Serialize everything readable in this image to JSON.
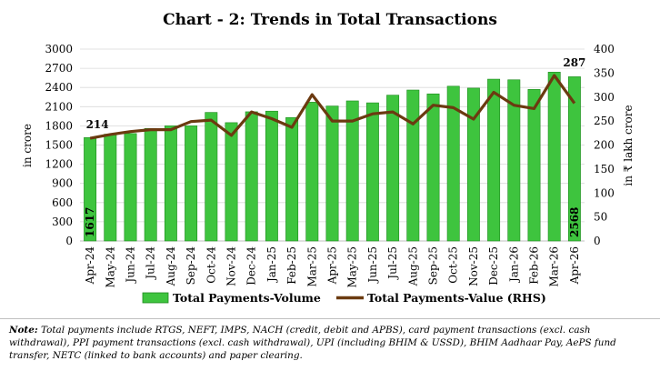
{
  "chart_data": {
    "type": "bar+line",
    "title": "Chart - 2: Trends in Total Transactions",
    "categories": [
      "Apr-24",
      "May-24",
      "Jun-24",
      "Jul-24",
      "Aug-24",
      "Sep-24",
      "Oct-24",
      "Nov-24",
      "Dec-24",
      "Jan-25",
      "Feb-25",
      "Mar-25",
      "Apr-25",
      "May-25",
      "Jun-25",
      "Jul-25",
      "Aug-25",
      "Sep-25",
      "Oct-25",
      "Nov-25",
      "Dec-25",
      "Jan-26",
      "Feb-26",
      "Mar-26",
      "Apr-26"
    ],
    "series": [
      {
        "name": "Total Payments-Volume",
        "type": "bar",
        "axis": "left",
        "color": "#3ec43e",
        "values": [
          1617,
          1670,
          1680,
          1760,
          1800,
          1800,
          2010,
          1850,
          2020,
          2030,
          1930,
          2170,
          2110,
          2190,
          2160,
          2280,
          2360,
          2300,
          2420,
          2390,
          2530,
          2520,
          2370,
          2640,
          2568
        ]
      },
      {
        "name": "Total Payments-Value (RHS)",
        "type": "line",
        "axis": "right",
        "color": "#6b3a10",
        "values": [
          214,
          222,
          228,
          232,
          232,
          249,
          252,
          220,
          269,
          255,
          237,
          305,
          250,
          250,
          265,
          269,
          244,
          283,
          278,
          254,
          310,
          283,
          276,
          345,
          287
        ]
      }
    ],
    "ylabel": "in crore",
    "y2label": "in ₹ lakh crore",
    "ylim": [
      0,
      3000
    ],
    "y2lim": [
      0,
      400
    ],
    "yticks": [
      0,
      300,
      600,
      900,
      1200,
      1500,
      1800,
      2100,
      2400,
      2700,
      3000
    ],
    "y2ticks": [
      0,
      50,
      100,
      150,
      200,
      250,
      300,
      350,
      400
    ],
    "data_labels": {
      "bar_first": "1617",
      "bar_last": "2568",
      "line_first": "214",
      "line_last": "287"
    },
    "grid": true,
    "legend": "bottom"
  },
  "note": {
    "label": "Note:",
    "text": " Total payments include RTGS, NEFT, IMPS, NACH (credit, debit and APBS), card payment transactions (excl. cash withdrawal), PPI payment transactions (excl. cash withdrawal), UPI (including BHIM & USSD), BHIM Aadhaar Pay, AePS fund transfer, NETC (linked to bank accounts) and paper clearing."
  }
}
